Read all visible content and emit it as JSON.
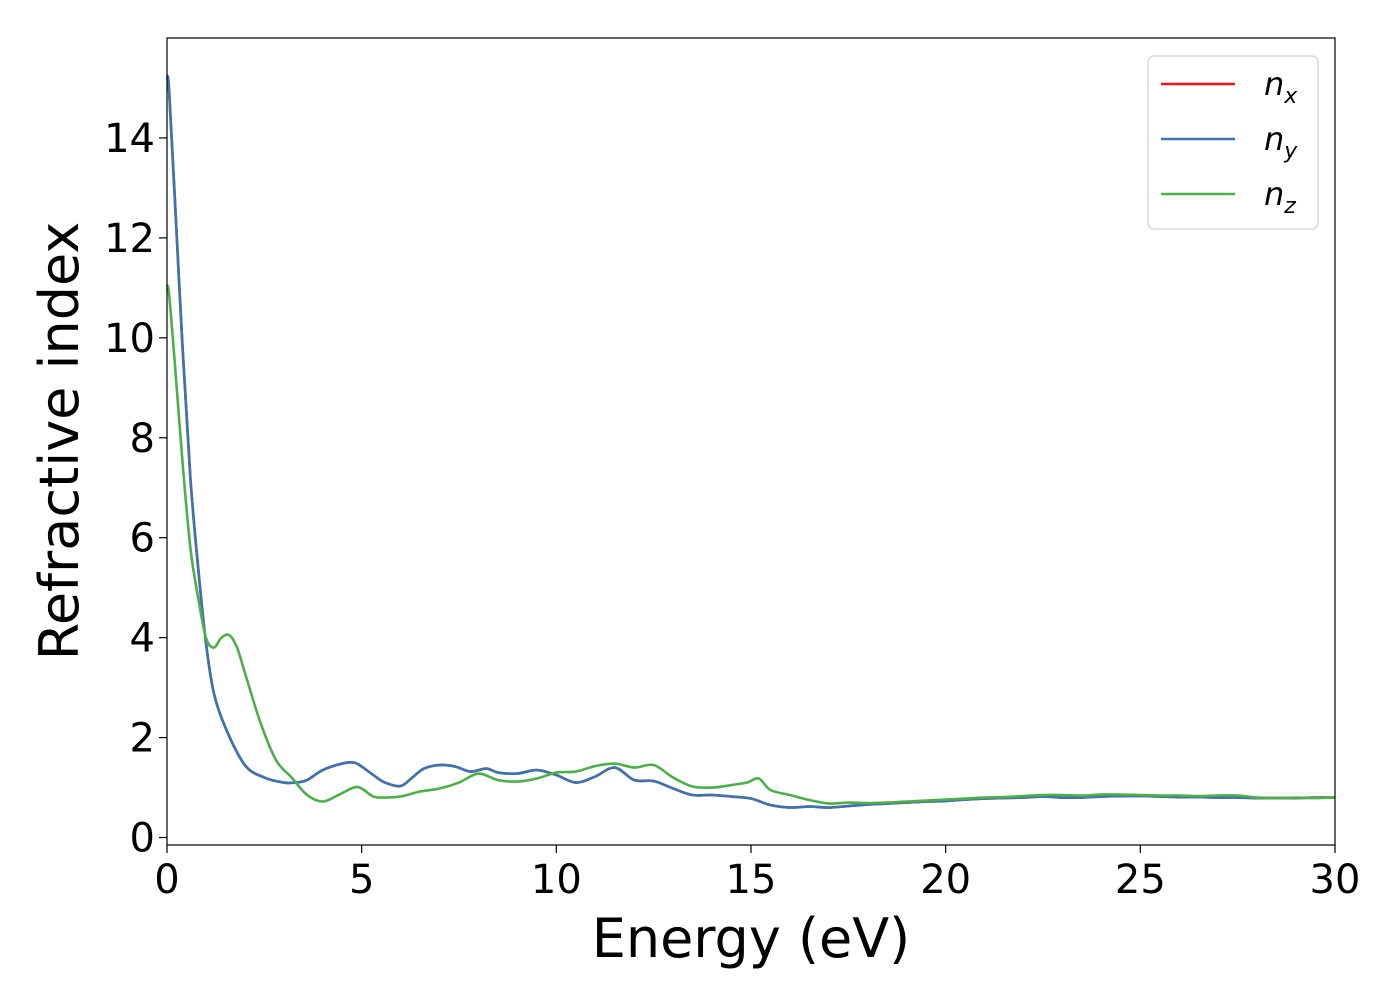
{
  "chart_data": {
    "type": "line",
    "xlabel": "Energy (eV)",
    "ylabel": "Refractive index",
    "xlim": [
      0,
      30
    ],
    "ylim": [
      -0.15,
      16.0
    ],
    "xticks": [
      0,
      5,
      10,
      15,
      20,
      25,
      30
    ],
    "yticks": [
      0,
      2,
      4,
      6,
      8,
      10,
      12,
      14
    ],
    "grid": false,
    "legend_position": "top-right",
    "series": [
      {
        "name": "n_x",
        "label_main": "n",
        "label_sub": "x",
        "color": "#e41a1c",
        "x": [
          0,
          0.05,
          0.2,
          0.4,
          0.6,
          0.8,
          1.0,
          1.2,
          1.5,
          2.0,
          2.5,
          3.0,
          3.3,
          3.6,
          4.0,
          4.5,
          4.8,
          5.0,
          5.3,
          5.6,
          6.0,
          6.3,
          6.6,
          7.0,
          7.4,
          7.8,
          8.2,
          8.5,
          9.0,
          9.5,
          10.0,
          10.5,
          11.0,
          11.5,
          12.0,
          12.5,
          13.0,
          13.5,
          14.0,
          14.5,
          15.0,
          15.5,
          16.0,
          16.5,
          17.0,
          17.5,
          18.0,
          18.5,
          19.0,
          19.5,
          20.0,
          20.5,
          21.0,
          21.5,
          22.0,
          22.5,
          23.0,
          23.5,
          24.0,
          24.5,
          25.0,
          25.5,
          26.0,
          26.5,
          27.0,
          27.5,
          28.0,
          28.5,
          29.0,
          29.5,
          30.0
        ],
        "values": [
          15.2,
          15.0,
          12.8,
          9.8,
          7.2,
          5.4,
          3.9,
          2.9,
          2.2,
          1.45,
          1.2,
          1.1,
          1.1,
          1.15,
          1.35,
          1.48,
          1.5,
          1.42,
          1.25,
          1.1,
          1.03,
          1.2,
          1.38,
          1.45,
          1.42,
          1.32,
          1.38,
          1.3,
          1.28,
          1.35,
          1.25,
          1.1,
          1.22,
          1.4,
          1.15,
          1.13,
          0.98,
          0.85,
          0.85,
          0.82,
          0.78,
          0.65,
          0.6,
          0.62,
          0.6,
          0.63,
          0.66,
          0.68,
          0.7,
          0.72,
          0.73,
          0.76,
          0.78,
          0.79,
          0.8,
          0.82,
          0.8,
          0.8,
          0.82,
          0.83,
          0.83,
          0.82,
          0.81,
          0.81,
          0.8,
          0.8,
          0.79,
          0.79,
          0.79,
          0.8,
          0.8
        ]
      },
      {
        "name": "n_y",
        "label_main": "n",
        "label_sub": "y",
        "color": "#3b75af",
        "x": [
          0,
          0.05,
          0.2,
          0.4,
          0.6,
          0.8,
          1.0,
          1.2,
          1.5,
          2.0,
          2.5,
          3.0,
          3.3,
          3.6,
          4.0,
          4.5,
          4.8,
          5.0,
          5.3,
          5.6,
          6.0,
          6.3,
          6.6,
          7.0,
          7.4,
          7.8,
          8.2,
          8.5,
          9.0,
          9.5,
          10.0,
          10.5,
          11.0,
          11.5,
          12.0,
          12.5,
          13.0,
          13.5,
          14.0,
          14.5,
          15.0,
          15.5,
          16.0,
          16.5,
          17.0,
          17.5,
          18.0,
          18.5,
          19.0,
          19.5,
          20.0,
          20.5,
          21.0,
          21.5,
          22.0,
          22.5,
          23.0,
          23.5,
          24.0,
          24.5,
          25.0,
          25.5,
          26.0,
          26.5,
          27.0,
          27.5,
          28.0,
          28.5,
          29.0,
          29.5,
          30.0
        ],
        "values": [
          15.2,
          15.0,
          12.8,
          9.8,
          7.2,
          5.4,
          3.9,
          2.9,
          2.2,
          1.45,
          1.2,
          1.1,
          1.1,
          1.15,
          1.35,
          1.48,
          1.5,
          1.42,
          1.25,
          1.1,
          1.03,
          1.2,
          1.38,
          1.45,
          1.42,
          1.32,
          1.38,
          1.3,
          1.28,
          1.35,
          1.25,
          1.1,
          1.22,
          1.4,
          1.15,
          1.13,
          0.98,
          0.85,
          0.85,
          0.82,
          0.78,
          0.65,
          0.6,
          0.62,
          0.6,
          0.63,
          0.66,
          0.68,
          0.7,
          0.72,
          0.73,
          0.76,
          0.78,
          0.79,
          0.8,
          0.82,
          0.8,
          0.8,
          0.82,
          0.83,
          0.83,
          0.82,
          0.81,
          0.81,
          0.8,
          0.8,
          0.79,
          0.79,
          0.79,
          0.8,
          0.8
        ]
      },
      {
        "name": "n_z",
        "label_main": "n",
        "label_sub": "z",
        "color": "#4daf4a",
        "x": [
          0,
          0.05,
          0.2,
          0.4,
          0.6,
          0.8,
          1.0,
          1.2,
          1.4,
          1.6,
          1.8,
          2.0,
          2.4,
          2.8,
          3.2,
          3.6,
          4.0,
          4.4,
          4.8,
          5.0,
          5.3,
          5.6,
          6.0,
          6.5,
          7.0,
          7.5,
          8.0,
          8.5,
          9.0,
          9.5,
          10.0,
          10.5,
          11.0,
          11.5,
          12.0,
          12.5,
          13.0,
          13.5,
          14.0,
          14.5,
          14.9,
          15.2,
          15.5,
          16.0,
          16.5,
          17.0,
          17.5,
          18.0,
          18.5,
          19.0,
          19.5,
          20.0,
          20.5,
          21.0,
          21.5,
          22.0,
          22.5,
          23.0,
          23.5,
          24.0,
          24.5,
          25.0,
          25.5,
          26.0,
          26.5,
          27.0,
          27.5,
          28.0,
          28.5,
          29.0,
          29.5,
          30.0
        ],
        "values": [
          11.0,
          10.9,
          9.5,
          7.5,
          5.8,
          4.8,
          4.0,
          3.8,
          4.0,
          4.05,
          3.8,
          3.3,
          2.3,
          1.55,
          1.2,
          0.85,
          0.72,
          0.85,
          1.0,
          0.98,
          0.82,
          0.8,
          0.82,
          0.92,
          0.98,
          1.1,
          1.28,
          1.15,
          1.12,
          1.18,
          1.3,
          1.32,
          1.43,
          1.48,
          1.4,
          1.45,
          1.2,
          1.02,
          1.0,
          1.05,
          1.1,
          1.18,
          0.95,
          0.85,
          0.75,
          0.68,
          0.7,
          0.69,
          0.7,
          0.72,
          0.74,
          0.76,
          0.78,
          0.8,
          0.81,
          0.83,
          0.85,
          0.85,
          0.84,
          0.86,
          0.86,
          0.85,
          0.84,
          0.84,
          0.83,
          0.84,
          0.84,
          0.8,
          0.79,
          0.8,
          0.79,
          0.8
        ]
      }
    ]
  }
}
